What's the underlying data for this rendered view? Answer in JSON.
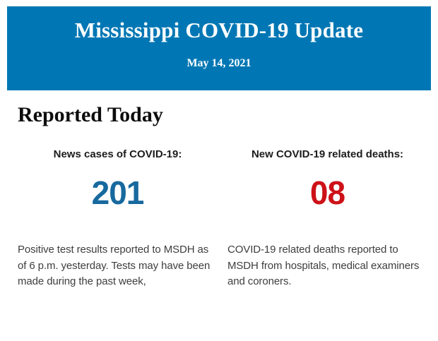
{
  "header": {
    "title": "Mississippi COVID-19 Update",
    "date": "May 14, 2021",
    "background_color": "#0077b4",
    "text_color": "#ffffff"
  },
  "section": {
    "title": "Reported Today"
  },
  "stats": [
    {
      "label": "News cases of COVID-19:",
      "value": "201",
      "value_color": "#17699e",
      "description": "Positive test results reported to MSDH as of 6 p.m. yesterday. Tests may have been made during the past week,"
    },
    {
      "label": "New COVID-19 related deaths:",
      "value": "08",
      "value_color": "#cd1118",
      "description": "COVID-19 related deaths reported to MSDH from hospitals, medical examiners and coroners."
    }
  ]
}
